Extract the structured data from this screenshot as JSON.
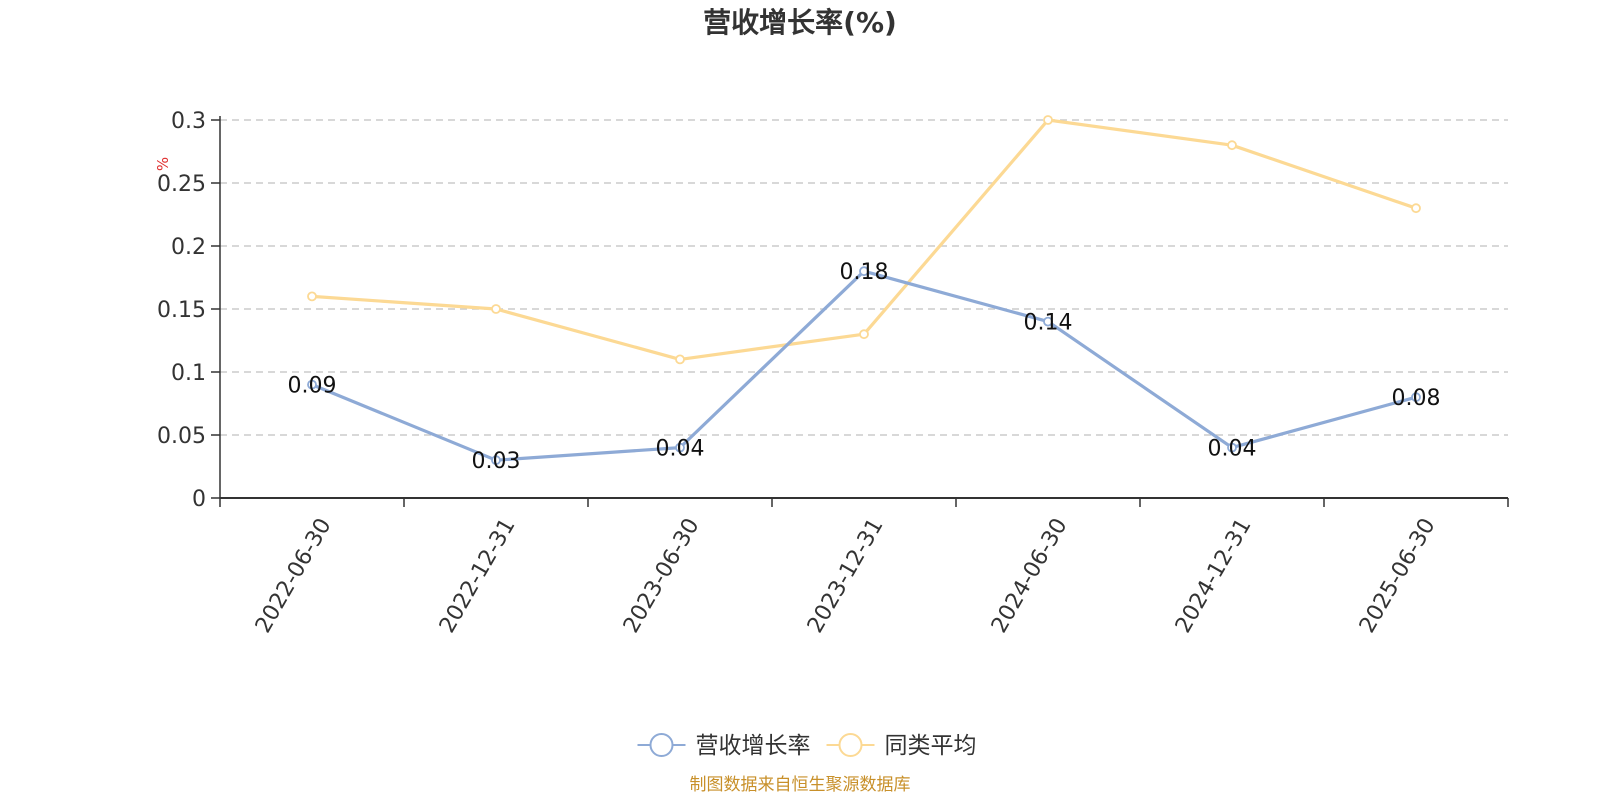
{
  "chart_data": {
    "type": "line",
    "title": "营收增长率(%)",
    "ylabel": "%",
    "xlabel": "",
    "categories": [
      "2022-06-30",
      "2022-12-31",
      "2023-06-30",
      "2023-12-31",
      "2024-06-30",
      "2024-12-31",
      "2025-06-30"
    ],
    "series": [
      {
        "name": "营收增长率",
        "values": [
          0.09,
          0.03,
          0.04,
          0.18,
          0.14,
          0.04,
          0.08
        ],
        "color": "#8eaad6",
        "labels": [
          "0.09",
          "0.03",
          "0.04",
          "0.18",
          "0.14",
          "0.04",
          "0.08"
        ]
      },
      {
        "name": "同类平均",
        "values": [
          0.16,
          0.15,
          0.11,
          0.13,
          0.3,
          0.28,
          0.23
        ],
        "color": "#fcd994"
      }
    ],
    "ylim": [
      0,
      0.3
    ],
    "yticks": [
      {
        "value": 0,
        "label": "0"
      },
      {
        "value": 0.05,
        "label": "0.05"
      },
      {
        "value": 0.1,
        "label": "0.1"
      },
      {
        "value": 0.15,
        "label": "0.15"
      },
      {
        "value": 0.2,
        "label": "0.2"
      },
      {
        "value": 0.25,
        "label": "0.25"
      },
      {
        "value": 0.3,
        "label": "0.3"
      }
    ],
    "grid": true,
    "legend_position": "bottom-center",
    "unit_color": "#e03030",
    "source_text": "制图数据来自恒生聚源数据库",
    "source_color": "#c8902a"
  }
}
